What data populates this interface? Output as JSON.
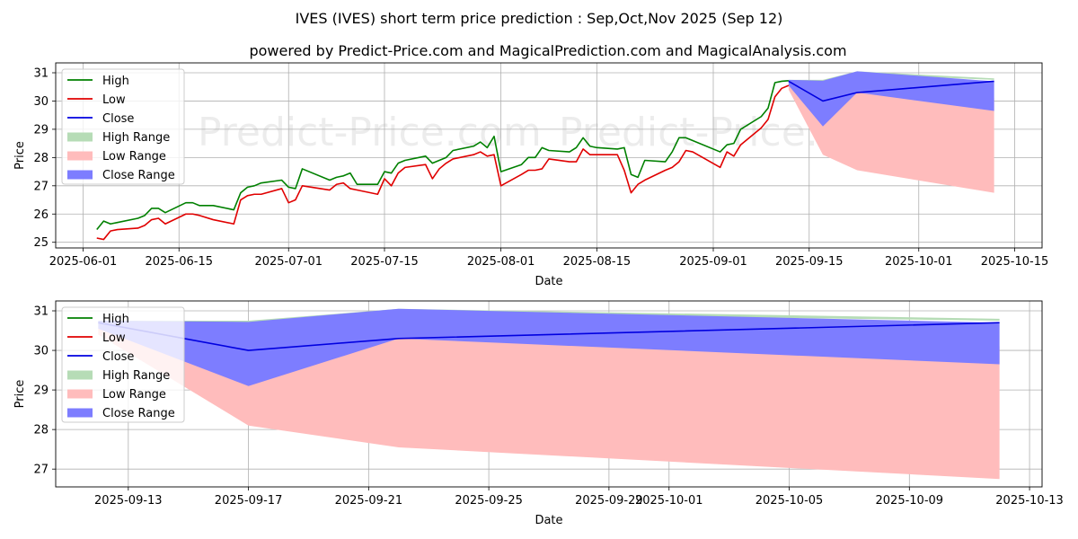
{
  "title_line1": "IVES (IVES) short term price prediction : Sep,Oct,Nov 2025 (Sep 12)",
  "title_line2": "powered by Predict-Price.com and MagicalPrediction.com and MagicalAnalysis.com",
  "watermark": "Predict-Price.com",
  "colors": {
    "high": "#008000",
    "low": "#e00000",
    "close": "#0000e0",
    "high_range": "#b6dcb6",
    "low_range": "#ffbcbc",
    "close_range": "#7d7dff",
    "grid": "#b0b0b0"
  },
  "legend": [
    "High",
    "Low",
    "Close",
    "High Range",
    "Low Range",
    "Close Range"
  ],
  "chart_data": [
    {
      "type": "line",
      "title": "",
      "xlabel": "Date",
      "ylabel": "Price",
      "xlim": [
        "2025-05-28",
        "2025-10-19"
      ],
      "ylim": [
        24.8,
        31.35
      ],
      "grid": true,
      "legend_position": "top-left",
      "xticks": [
        "2025-06-01",
        "2025-06-15",
        "2025-07-01",
        "2025-07-15",
        "2025-08-01",
        "2025-08-15",
        "2025-09-01",
        "2025-09-15",
        "2025-10-01",
        "2025-10-15"
      ],
      "yticks": [
        25,
        26,
        27,
        28,
        29,
        30,
        31
      ],
      "series": [
        {
          "name": "High",
          "x": [
            "2025-06-03",
            "2025-06-04",
            "2025-06-05",
            "2025-06-06",
            "2025-06-09",
            "2025-06-10",
            "2025-06-11",
            "2025-06-12",
            "2025-06-13",
            "2025-06-16",
            "2025-06-17",
            "2025-06-18",
            "2025-06-20",
            "2025-06-23",
            "2025-06-24",
            "2025-06-25",
            "2025-06-26",
            "2025-06-27",
            "2025-06-30",
            "2025-07-01",
            "2025-07-02",
            "2025-07-03",
            "2025-07-07",
            "2025-07-08",
            "2025-07-09",
            "2025-07-10",
            "2025-07-11",
            "2025-07-14",
            "2025-07-15",
            "2025-07-16",
            "2025-07-17",
            "2025-07-18",
            "2025-07-21",
            "2025-07-22",
            "2025-07-23",
            "2025-07-24",
            "2025-07-25",
            "2025-07-28",
            "2025-07-29",
            "2025-07-30",
            "2025-07-31",
            "2025-08-01",
            "2025-08-04",
            "2025-08-05",
            "2025-08-06",
            "2025-08-07",
            "2025-08-08",
            "2025-08-11",
            "2025-08-12",
            "2025-08-13",
            "2025-08-14",
            "2025-08-15",
            "2025-08-18",
            "2025-08-19",
            "2025-08-20",
            "2025-08-21",
            "2025-08-22",
            "2025-08-25",
            "2025-08-26",
            "2025-08-27",
            "2025-08-28",
            "2025-08-29",
            "2025-09-02",
            "2025-09-03",
            "2025-09-04",
            "2025-09-05",
            "2025-09-08",
            "2025-09-09",
            "2025-09-10",
            "2025-09-11",
            "2025-09-12"
          ],
          "values": [
            25.45,
            25.75,
            25.65,
            25.7,
            25.85,
            25.95,
            26.2,
            26.2,
            26.05,
            26.4,
            26.4,
            26.3,
            26.3,
            26.15,
            26.75,
            26.95,
            27.0,
            27.1,
            27.2,
            26.95,
            26.9,
            27.6,
            27.2,
            27.3,
            27.35,
            27.45,
            27.05,
            27.05,
            27.5,
            27.45,
            27.8,
            27.9,
            28.05,
            27.8,
            27.9,
            28.0,
            28.25,
            28.4,
            28.55,
            28.35,
            28.75,
            27.5,
            27.75,
            28.0,
            28.0,
            28.35,
            28.25,
            28.2,
            28.35,
            28.7,
            28.4,
            28.35,
            28.3,
            28.35,
            27.4,
            27.3,
            27.9,
            27.85,
            28.2,
            28.7,
            28.7,
            28.6,
            28.2,
            28.45,
            28.5,
            29.0,
            29.45,
            29.75,
            30.65,
            30.7,
            30.72
          ]
        },
        {
          "name": "Low",
          "x": [
            "2025-06-03",
            "2025-06-04",
            "2025-06-05",
            "2025-06-06",
            "2025-06-09",
            "2025-06-10",
            "2025-06-11",
            "2025-06-12",
            "2025-06-13",
            "2025-06-16",
            "2025-06-17",
            "2025-06-18",
            "2025-06-20",
            "2025-06-23",
            "2025-06-24",
            "2025-06-25",
            "2025-06-26",
            "2025-06-27",
            "2025-06-30",
            "2025-07-01",
            "2025-07-02",
            "2025-07-03",
            "2025-07-07",
            "2025-07-08",
            "2025-07-09",
            "2025-07-10",
            "2025-07-11",
            "2025-07-14",
            "2025-07-15",
            "2025-07-16",
            "2025-07-17",
            "2025-07-18",
            "2025-07-21",
            "2025-07-22",
            "2025-07-23",
            "2025-07-24",
            "2025-07-25",
            "2025-07-28",
            "2025-07-29",
            "2025-07-30",
            "2025-07-31",
            "2025-08-01",
            "2025-08-04",
            "2025-08-05",
            "2025-08-06",
            "2025-08-07",
            "2025-08-08",
            "2025-08-11",
            "2025-08-12",
            "2025-08-13",
            "2025-08-14",
            "2025-08-15",
            "2025-08-18",
            "2025-08-19",
            "2025-08-20",
            "2025-08-21",
            "2025-08-22",
            "2025-08-25",
            "2025-08-26",
            "2025-08-27",
            "2025-08-28",
            "2025-08-29",
            "2025-09-02",
            "2025-09-03",
            "2025-09-04",
            "2025-09-05",
            "2025-09-08",
            "2025-09-09",
            "2025-09-10",
            "2025-09-11",
            "2025-09-12"
          ],
          "values": [
            25.15,
            25.1,
            25.4,
            25.45,
            25.5,
            25.6,
            25.8,
            25.85,
            25.65,
            26.0,
            26.0,
            25.95,
            25.8,
            25.65,
            26.5,
            26.65,
            26.7,
            26.7,
            26.9,
            26.4,
            26.5,
            27.0,
            26.85,
            27.05,
            27.1,
            26.9,
            26.85,
            26.7,
            27.25,
            27.0,
            27.45,
            27.65,
            27.75,
            27.25,
            27.6,
            27.8,
            27.95,
            28.1,
            28.2,
            28.05,
            28.1,
            27.0,
            27.4,
            27.55,
            27.55,
            27.6,
            27.95,
            27.85,
            27.85,
            28.3,
            28.1,
            28.1,
            28.1,
            27.55,
            26.75,
            27.05,
            27.2,
            27.55,
            27.65,
            27.85,
            28.25,
            28.2,
            27.65,
            28.2,
            28.05,
            28.45,
            29.05,
            29.35,
            30.15,
            30.45,
            30.55
          ]
        },
        {
          "name": "Close",
          "x": [
            "2025-09-12",
            "2025-09-17",
            "2025-09-22",
            "2025-10-12"
          ],
          "values": [
            30.7,
            30.0,
            30.3,
            30.7
          ]
        }
      ],
      "ranges": [
        {
          "name": "High Range",
          "x": [
            "2025-09-12",
            "2025-09-17",
            "2025-09-22",
            "2025-10-12"
          ],
          "upper": [
            30.75,
            30.75,
            31.05,
            30.8
          ],
          "lower": [
            30.65,
            30.7,
            30.95,
            30.75
          ]
        },
        {
          "name": "Low Range",
          "x": [
            "2025-09-12",
            "2025-09-17",
            "2025-09-22",
            "2025-10-12"
          ],
          "upper": [
            30.6,
            29.5,
            30.3,
            30.1
          ],
          "lower": [
            30.4,
            28.1,
            27.55,
            26.75
          ]
        },
        {
          "name": "Close Range",
          "x": [
            "2025-09-12",
            "2025-09-17",
            "2025-09-22",
            "2025-10-12"
          ],
          "upper": [
            30.75,
            30.72,
            31.05,
            30.7
          ],
          "lower": [
            30.55,
            29.1,
            30.3,
            29.65
          ]
        }
      ]
    },
    {
      "type": "line",
      "title": "",
      "xlabel": "Date",
      "ylabel": "Price",
      "xlim": [
        "2025-09-10 14:00",
        "2025-10-13 10:00"
      ],
      "ylim": [
        26.55,
        31.25
      ],
      "grid": true,
      "legend_position": "top-left",
      "xticks": [
        "2025-09-13",
        "2025-09-17",
        "2025-09-21",
        "2025-09-25",
        "2025-09-29",
        "2025-10-01",
        "2025-10-05",
        "2025-10-09",
        "2025-10-13"
      ],
      "yticks": [
        27,
        28,
        29,
        30,
        31
      ],
      "series": [
        {
          "name": "High",
          "x": [],
          "values": []
        },
        {
          "name": "Low",
          "x": [],
          "values": []
        },
        {
          "name": "Close",
          "x": [
            "2025-09-12",
            "2025-09-17",
            "2025-09-22",
            "2025-10-12"
          ],
          "values": [
            30.7,
            30.0,
            30.3,
            30.7
          ]
        }
      ],
      "ranges": [
        {
          "name": "High Range",
          "x": [
            "2025-09-12",
            "2025-09-17",
            "2025-09-22",
            "2025-10-12"
          ],
          "upper": [
            30.75,
            30.75,
            31.05,
            30.8
          ],
          "lower": [
            30.65,
            30.7,
            30.95,
            30.75
          ]
        },
        {
          "name": "Low Range",
          "x": [
            "2025-09-12",
            "2025-09-17",
            "2025-09-22",
            "2025-10-12"
          ],
          "upper": [
            30.6,
            29.5,
            30.3,
            30.1
          ],
          "lower": [
            30.4,
            28.1,
            27.55,
            26.75
          ]
        },
        {
          "name": "Close Range",
          "x": [
            "2025-09-12",
            "2025-09-17",
            "2025-09-22",
            "2025-10-12"
          ],
          "upper": [
            30.75,
            30.72,
            31.05,
            30.7
          ],
          "lower": [
            30.55,
            29.1,
            30.3,
            29.65
          ]
        }
      ]
    }
  ]
}
